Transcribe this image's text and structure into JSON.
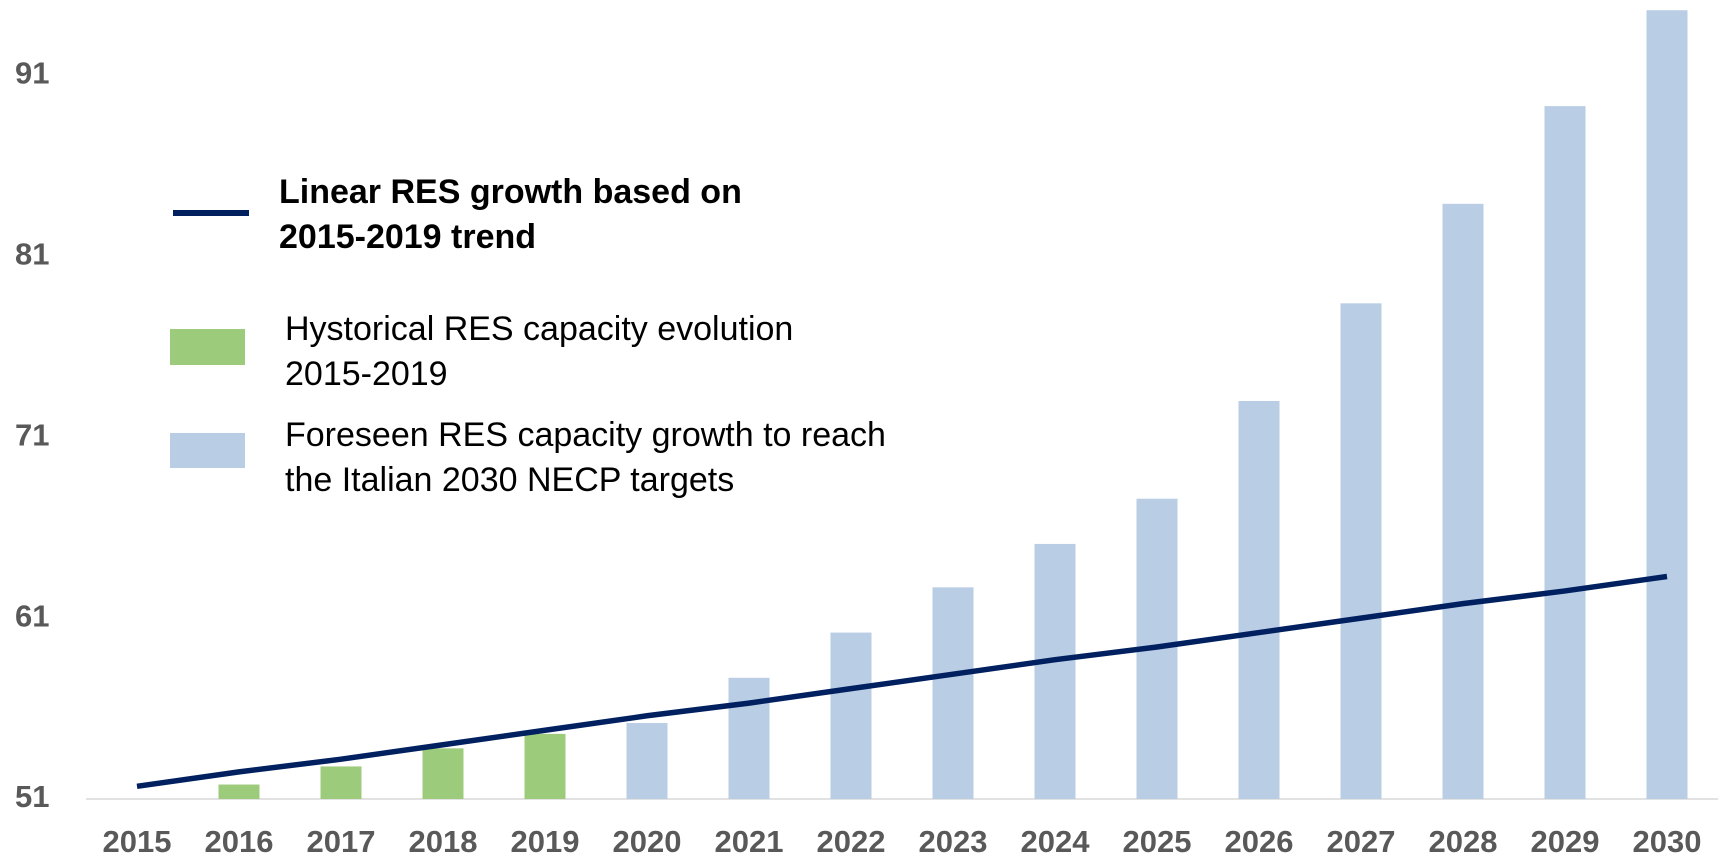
{
  "chart_data": {
    "type": "bar",
    "categories": [
      "2015",
      "2016",
      "2017",
      "2018",
      "2019",
      "2020",
      "2021",
      "2022",
      "2023",
      "2024",
      "2025",
      "2026",
      "2027",
      "2028",
      "2029",
      "2030"
    ],
    "series": [
      {
        "name": "Linear RES growth based on 2015-2019 trend",
        "type": "line",
        "color": "#002060",
        "values": [
          51.7,
          52.5,
          53.2,
          54.0,
          54.8,
          55.6,
          56.3,
          57.1,
          57.9,
          58.7,
          59.4,
          60.2,
          61.0,
          61.8,
          62.5,
          63.3
        ]
      },
      {
        "name": "Hystorical RES capacity evolution 2015-2019",
        "type": "bar",
        "color": "#9dcb7c",
        "values": [
          51.0,
          51.8,
          52.8,
          53.8,
          54.6,
          null,
          null,
          null,
          null,
          null,
          null,
          null,
          null,
          null,
          null,
          null
        ]
      },
      {
        "name": "Foreseen RES capacity growth to reach the Italian 2030 NECP targets",
        "type": "bar",
        "color": "#b9cde5",
        "values": [
          null,
          null,
          null,
          null,
          null,
          55.2,
          57.7,
          60.2,
          62.7,
          65.1,
          67.6,
          73.0,
          78.4,
          83.9,
          89.3,
          94.6
        ]
      }
    ],
    "ylim": [
      51,
      95
    ],
    "yticks": [
      51,
      61,
      71,
      81,
      91
    ],
    "legend": "upper left"
  }
}
